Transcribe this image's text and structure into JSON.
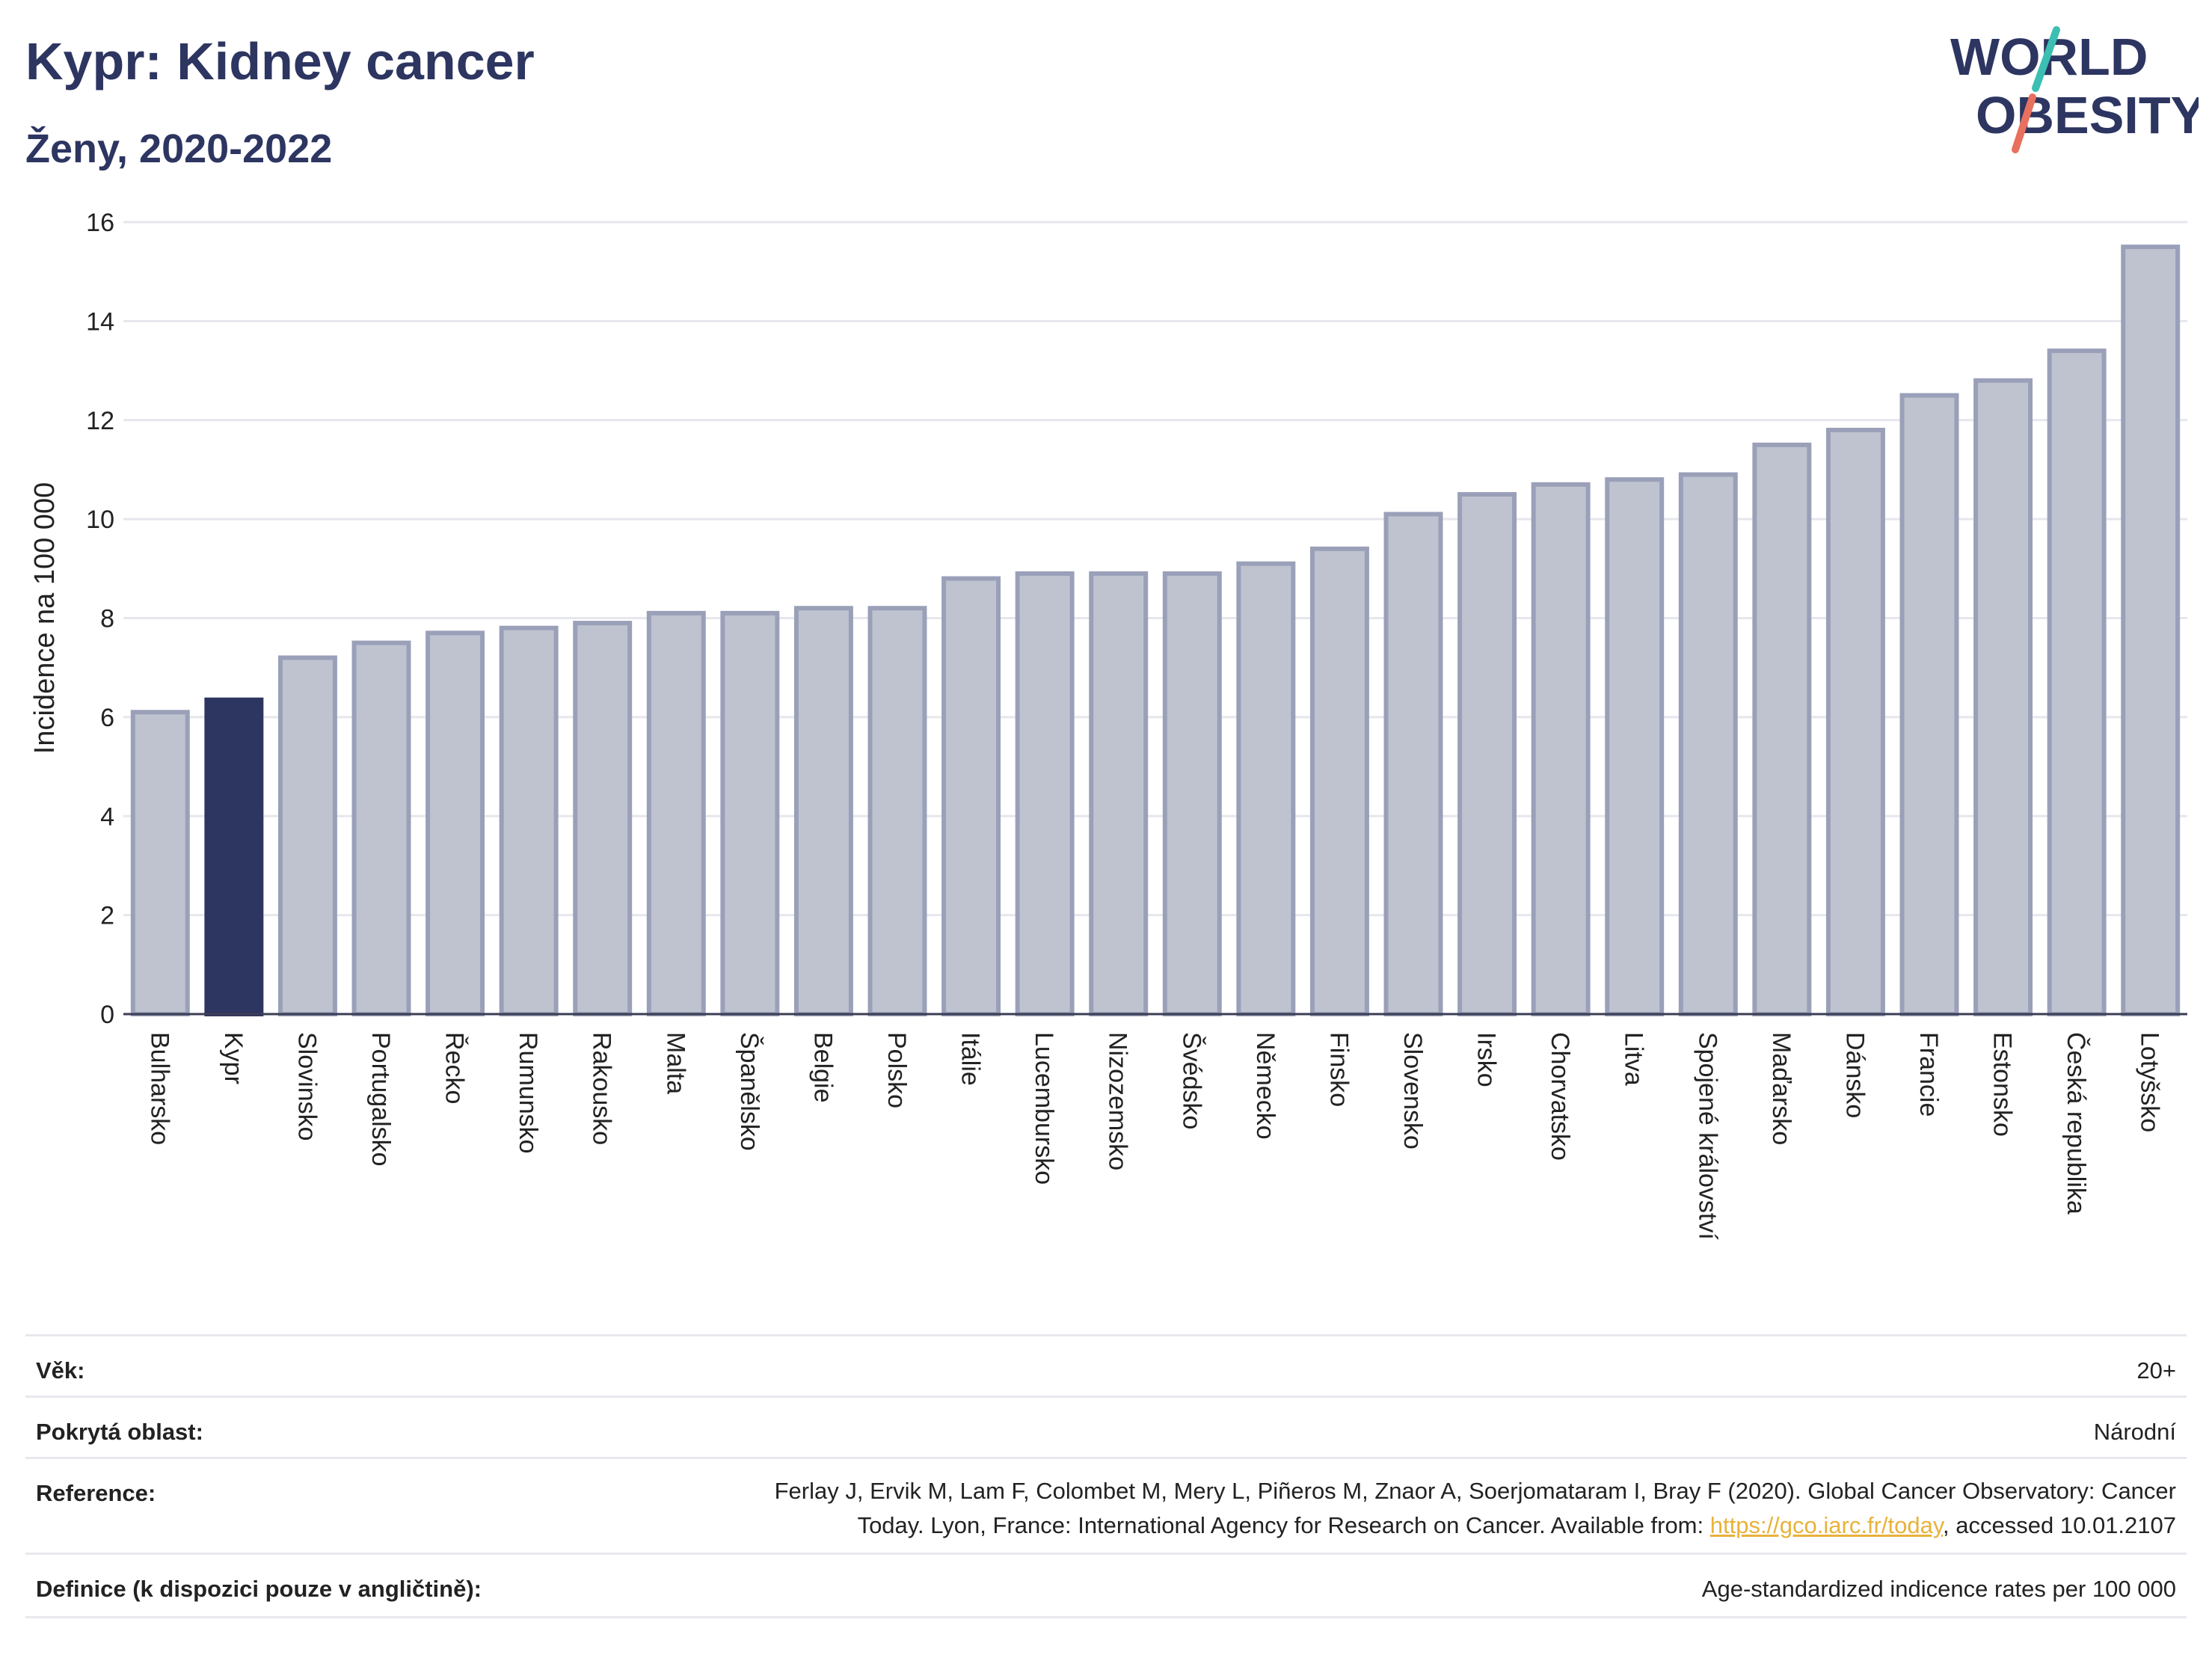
{
  "header": {
    "title": "Kypr: Kidney cancer",
    "subtitle": "Ženy, 2020-2022"
  },
  "logo": {
    "line1": "WORLD",
    "line2": "OBESITY",
    "accent_colors": [
      "#3bbfb2",
      "#e8705f"
    ]
  },
  "colors": {
    "highlight": "#2d3561",
    "bar": "#bfc3d0",
    "bar_border": "#9aa0b8",
    "text_dark": "#2d3561"
  },
  "chart_data": {
    "type": "bar",
    "title": "Kypr: Kidney cancer",
    "subtitle": "Ženy, 2020-2022",
    "ylabel": "Incidence na 100 000",
    "xlabel": "",
    "ylim": [
      0,
      16
    ],
    "yticks": [
      0,
      2,
      4,
      6,
      8,
      10,
      12,
      14,
      16
    ],
    "grid": true,
    "highlight": "Kypr",
    "categories": [
      "Bulharsko",
      "Kypr",
      "Slovinsko",
      "Portugalsko",
      "Řecko",
      "Rumunsko",
      "Rakousko",
      "Malta",
      "Španělsko",
      "Belgie",
      "Polsko",
      "Itálie",
      "Lucembursko",
      "Nizozemsko",
      "Švédsko",
      "Německo",
      "Finsko",
      "Slovensko",
      "Irsko",
      "Chorvatsko",
      "Litva",
      "Spojené království",
      "Maďarsko",
      "Dánsko",
      "Francie",
      "Estonsko",
      "Česká republika",
      "Lotyšsko"
    ],
    "values": [
      6.1,
      6.35,
      7.2,
      7.5,
      7.7,
      7.8,
      7.9,
      8.1,
      8.1,
      8.2,
      8.2,
      8.8,
      8.9,
      8.9,
      8.9,
      9.1,
      9.4,
      10.1,
      10.5,
      10.7,
      10.8,
      10.9,
      11.5,
      11.8,
      12.5,
      12.8,
      13.4,
      15.5
    ]
  },
  "meta": {
    "age_label": "Věk:",
    "age_value": "20+",
    "area_label": "Pokrytá oblast:",
    "area_value": "Národní",
    "ref_label": "Reference:",
    "ref_text_1": "Ferlay J, Ervik M, Lam F, Colombet M, Mery L, Piñeros M, Znaor A, Soerjomataram I, Bray F (2020). Global Cancer Observatory: Cancer",
    "ref_text_2a": "Today. Lyon, France: International Agency for Research on Cancer. Available from: ",
    "ref_link": "https://gco.iarc.fr/today",
    "ref_text_2b": ", accessed 10.01.2107",
    "def_label": "Definice (k dispozici pouze v angličtině):",
    "def_value": "Age-standardized indicence rates per 100 000"
  }
}
